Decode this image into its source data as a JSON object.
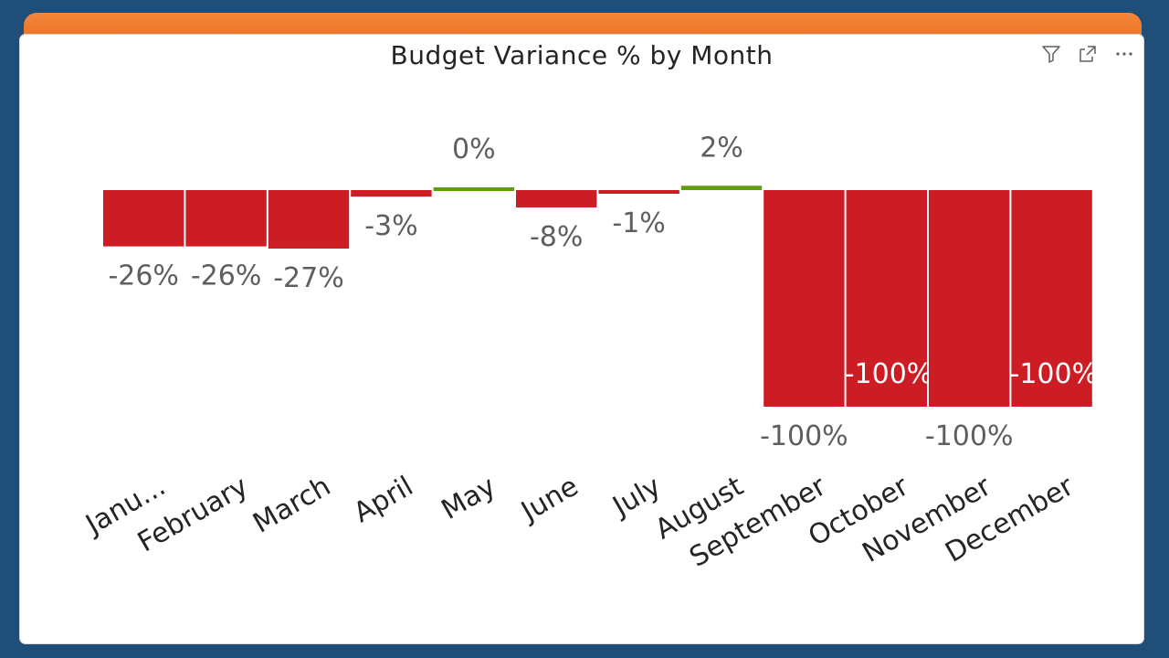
{
  "visual": {
    "title": "Budget Variance % by Month",
    "header_icons": [
      "filter-icon",
      "focus-mode-icon",
      "more-options-icon"
    ]
  },
  "colors": {
    "negative": "#cc1c24",
    "positive": "#5d9e0f",
    "label": "#605e5c",
    "label_inside": "#ffffff",
    "axis_text": "#252423",
    "accent_strip": "#f0792c",
    "frame": "#1f4e79"
  },
  "chart_data": {
    "type": "bar",
    "title": "Budget Variance % by Month",
    "xlabel": "",
    "ylabel": "",
    "categories": [
      "Janu...",
      "February",
      "March",
      "April",
      "May",
      "June",
      "July",
      "August",
      "September",
      "October",
      "November",
      "December"
    ],
    "values": [
      -26,
      -26,
      -27,
      -3,
      0,
      -8,
      -1,
      2,
      -100,
      -100,
      -100,
      -100
    ],
    "data_labels": [
      "-26%",
      "-26%",
      "-27%",
      "-3%",
      "0%",
      "-8%",
      "-1%",
      "2%",
      "-100%",
      "-100%",
      "-100%",
      "-100%"
    ],
    "data_label_position": [
      "outside",
      "outside",
      "outside",
      "outside",
      "outside",
      "outside",
      "outside",
      "outside",
      "outside",
      "inside",
      "outside",
      "inside"
    ],
    "ylim": [
      -100,
      2
    ],
    "grid": false,
    "legend": "none"
  }
}
